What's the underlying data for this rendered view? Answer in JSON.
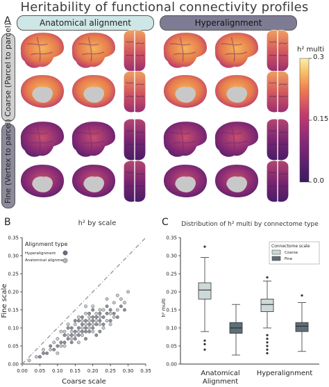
{
  "figure": {
    "title": "Heritability of functional connectivity profiles",
    "panel_a": {
      "letter": "A",
      "col_anat": "Anatomical alignment",
      "col_hyper": "Hyperalignment",
      "row_coarse": "Coarse (Parcel to parcel)",
      "row_fine": "Fine (Vertex to parcel)",
      "colorbar_title": "h² multi",
      "colorbar_ticks": [
        "0.3",
        "0.15",
        "0.0"
      ],
      "colors": {
        "low": "#3b1a63",
        "mid": "#c43c6e",
        "high": "#fbeeb0"
      }
    },
    "panel_b": {
      "letter": "B",
      "title": "h² by scale",
      "legend_title": "Alignment type",
      "legend_items": [
        "Hyperalignment",
        "Anatomical alignment"
      ],
      "xlabel": "Coarse scale",
      "ylabel": "Fine scale"
    },
    "panel_c": {
      "letter": "C",
      "title": "Distribution of h² multi by connectome type",
      "legend_title": "Connectome scale",
      "legend_items": [
        "Coarse",
        "Fine"
      ],
      "ylabel": "h² multi",
      "group_labels": [
        "Anatomical Alignment",
        "Hyperalignment"
      ]
    }
  },
  "chart_data": [
    {
      "type": "scatter",
      "title": "h² by scale",
      "xlabel": "Coarse scale",
      "ylabel": "Fine scale",
      "xlim": [
        0.0,
        0.35
      ],
      "ylim": [
        0.0,
        0.35
      ],
      "xticks": [
        "0.00",
        "0.05",
        "0.10",
        "0.15",
        "0.20",
        "0.25",
        "0.30",
        "0.35"
      ],
      "yticks": [
        "0.00",
        "0.05",
        "0.10",
        "0.15",
        "0.20",
        "0.25",
        "0.30",
        "0.35"
      ],
      "reference_line": "y = x",
      "series": [
        {
          "name": "Hyperalignment",
          "color": "#6a6a7a",
          "points": [
            [
              0.05,
              0.02
            ],
            [
              0.06,
              0.03
            ],
            [
              0.07,
              0.03
            ],
            [
              0.08,
              0.05
            ],
            [
              0.09,
              0.04
            ],
            [
              0.1,
              0.05
            ],
            [
              0.11,
              0.06
            ],
            [
              0.12,
              0.06
            ],
            [
              0.12,
              0.08
            ],
            [
              0.13,
              0.07
            ],
            [
              0.14,
              0.08
            ],
            [
              0.14,
              0.1
            ],
            [
              0.15,
              0.09
            ],
            [
              0.15,
              0.07
            ],
            [
              0.16,
              0.1
            ],
            [
              0.16,
              0.08
            ],
            [
              0.17,
              0.11
            ],
            [
              0.17,
              0.09
            ],
            [
              0.18,
              0.1
            ],
            [
              0.18,
              0.12
            ],
            [
              0.19,
              0.11
            ],
            [
              0.19,
              0.09
            ],
            [
              0.2,
              0.12
            ],
            [
              0.2,
              0.1
            ],
            [
              0.21,
              0.13
            ],
            [
              0.21,
              0.11
            ],
            [
              0.22,
              0.12
            ],
            [
              0.22,
              0.14
            ],
            [
              0.23,
              0.13
            ],
            [
              0.23,
              0.11
            ],
            [
              0.24,
              0.14
            ],
            [
              0.25,
              0.12
            ],
            [
              0.25,
              0.15
            ],
            [
              0.26,
              0.14
            ],
            [
              0.27,
              0.13
            ],
            [
              0.28,
              0.16
            ],
            [
              0.29,
              0.15
            ],
            [
              0.17,
              0.13
            ],
            [
              0.18,
              0.07
            ],
            [
              0.2,
              0.15
            ],
            [
              0.15,
              0.12
            ],
            [
              0.13,
              0.1
            ],
            [
              0.22,
              0.09
            ],
            [
              0.24,
              0.16
            ],
            [
              0.19,
              0.14
            ],
            [
              0.16,
              0.12
            ],
            [
              0.21,
              0.08
            ],
            [
              0.14,
              0.06
            ],
            [
              0.18,
              0.09
            ],
            [
              0.2,
              0.13
            ]
          ]
        },
        {
          "name": "Anatomical alignment",
          "color": "#b0b8c0",
          "points": [
            [
              0.04,
              0.02
            ],
            [
              0.06,
              0.04
            ],
            [
              0.08,
              0.04
            ],
            [
              0.09,
              0.06
            ],
            [
              0.1,
              0.07
            ],
            [
              0.11,
              0.05
            ],
            [
              0.12,
              0.09
            ],
            [
              0.13,
              0.08
            ],
            [
              0.14,
              0.09
            ],
            [
              0.15,
              0.11
            ],
            [
              0.16,
              0.09
            ],
            [
              0.17,
              0.12
            ],
            [
              0.17,
              0.1
            ],
            [
              0.18,
              0.11
            ],
            [
              0.19,
              0.13
            ],
            [
              0.19,
              0.1
            ],
            [
              0.2,
              0.11
            ],
            [
              0.21,
              0.14
            ],
            [
              0.22,
              0.11
            ],
            [
              0.22,
              0.13
            ],
            [
              0.23,
              0.15
            ],
            [
              0.24,
              0.12
            ],
            [
              0.25,
              0.14
            ],
            [
              0.26,
              0.17
            ],
            [
              0.27,
              0.15
            ],
            [
              0.28,
              0.18
            ],
            [
              0.29,
              0.17
            ],
            [
              0.3,
              0.2
            ],
            [
              0.16,
              0.13
            ],
            [
              0.18,
              0.14
            ],
            [
              0.2,
              0.09
            ],
            [
              0.21,
              0.12
            ],
            [
              0.15,
              0.08
            ],
            [
              0.13,
              0.11
            ],
            [
              0.23,
              0.1
            ],
            [
              0.19,
              0.12
            ],
            [
              0.17,
              0.08
            ],
            [
              0.25,
              0.11
            ],
            [
              0.14,
              0.07
            ],
            [
              0.26,
              0.13
            ],
            [
              0.02,
              0.01
            ],
            [
              0.1,
              0.03
            ],
            [
              0.12,
              0.05
            ],
            [
              0.2,
              0.16
            ],
            [
              0.22,
              0.15
            ],
            [
              0.24,
              0.18
            ],
            [
              0.11,
              0.09
            ],
            [
              0.16,
              0.06
            ],
            [
              0.27,
              0.19
            ],
            [
              0.18,
              0.16
            ]
          ]
        }
      ]
    },
    {
      "type": "box",
      "title": "Distribution of h² multi by connectome type",
      "ylabel": "h² multi",
      "ylim": [
        0.0,
        0.35
      ],
      "yticks": [
        "0.00",
        "0.05",
        "0.10",
        "0.15",
        "0.20",
        "0.25",
        "0.30",
        "0.35"
      ],
      "categories": [
        "Anatomical Alignment",
        "Hyperalignment"
      ],
      "series": [
        {
          "name": "Coarse",
          "color": "#cdd8d8",
          "boxes": [
            {
              "whisker_low": 0.09,
              "q1": 0.18,
              "median": 0.205,
              "q3": 0.225,
              "whisker_high": 0.295,
              "outliers": [
                0.04,
                0.055,
                0.065,
                0.325
              ]
            },
            {
              "whisker_low": 0.1,
              "q1": 0.145,
              "median": 0.165,
              "q3": 0.18,
              "whisker_high": 0.23,
              "outliers": [
                0.03,
                0.04,
                0.05,
                0.06,
                0.07,
                0.08,
                0.24
              ]
            }
          ]
        },
        {
          "name": "Fine",
          "color": "#5f6f78",
          "boxes": [
            {
              "whisker_low": 0.025,
              "q1": 0.085,
              "median": 0.1,
              "q3": 0.115,
              "whisker_high": 0.165,
              "outliers": []
            },
            {
              "whisker_low": 0.035,
              "q1": 0.09,
              "median": 0.105,
              "q3": 0.115,
              "whisker_high": 0.17,
              "outliers": [
                0.19
              ]
            }
          ]
        }
      ]
    }
  ]
}
